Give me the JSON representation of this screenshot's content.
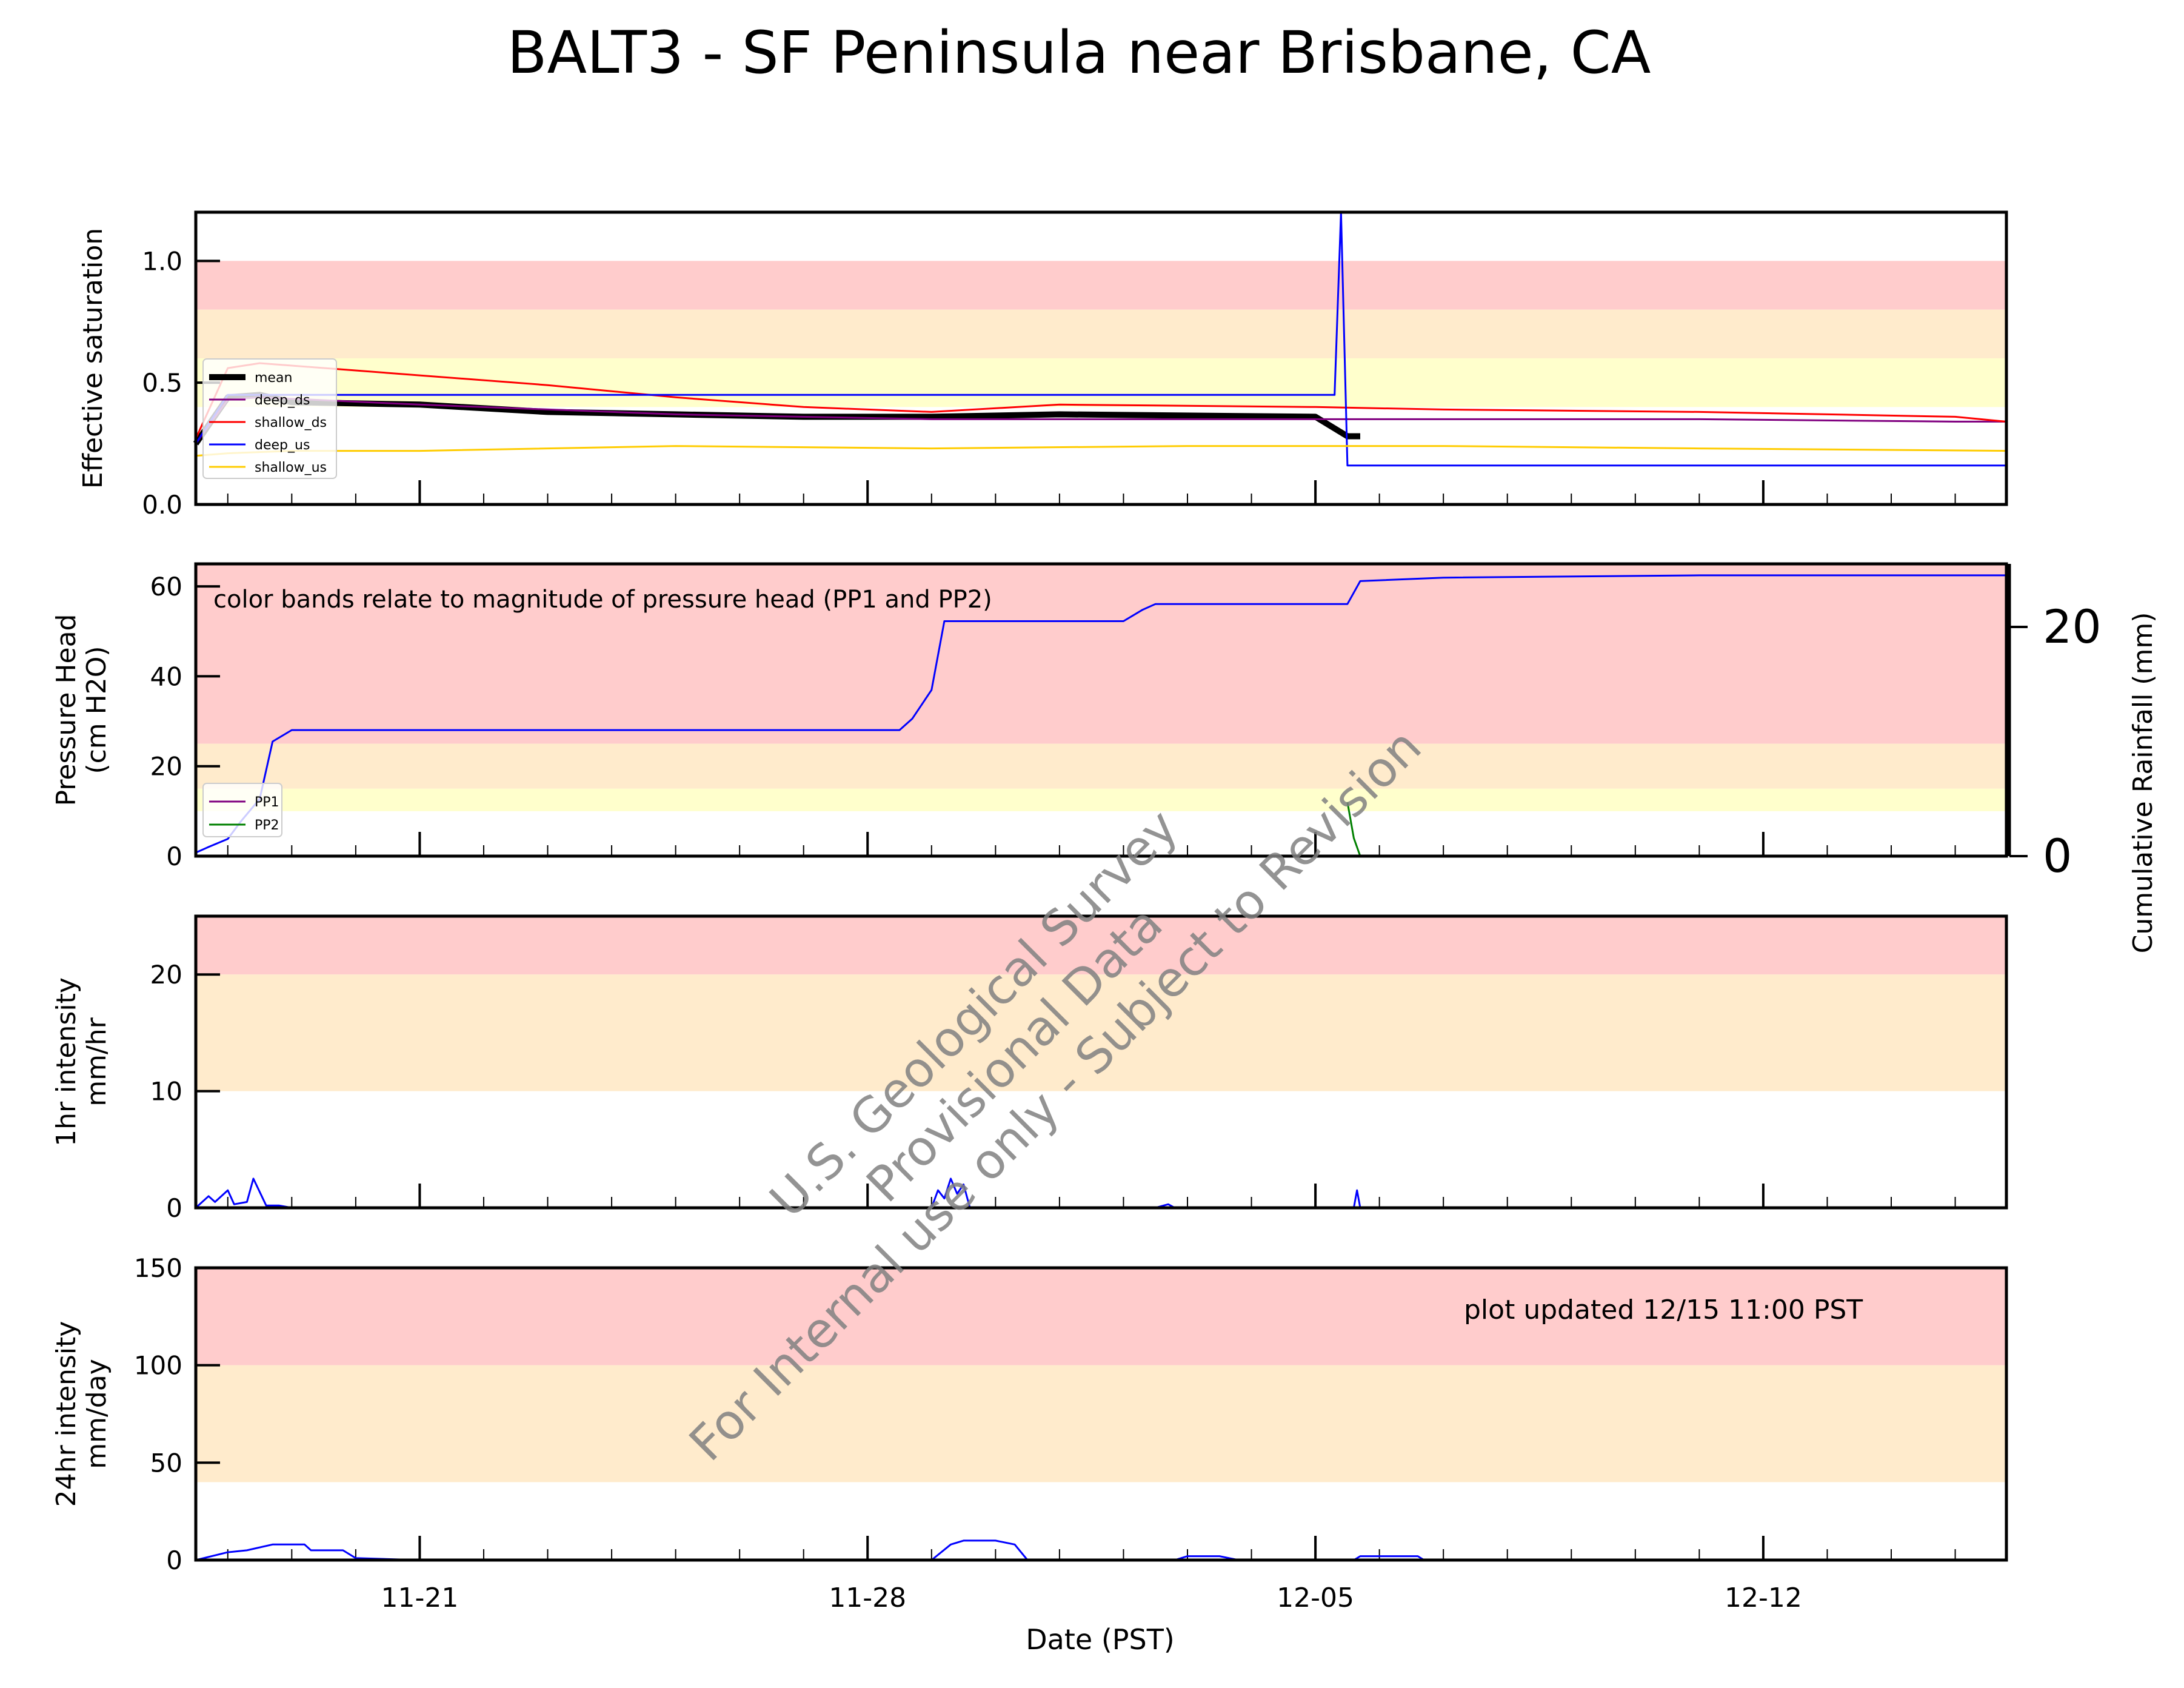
{
  "title": "BALT3 - SF Peninsula near Brisbane, CA",
  "xlabel": "Date (PST)",
  "x_ticks": [
    "11-21",
    "11-28",
    "12-05",
    "12-12"
  ],
  "note_pressure": "color bands relate to magnitude of pressure head (PP1 and PP2)",
  "note_updated": "plot updated 12/15 11:00  PST",
  "watermark": [
    "U.S. Geological Survey",
    "Provisional Data",
    "For Internal use only - Subject to Revision"
  ],
  "colors": {
    "red_band": "#ffcccc",
    "orange_band": "#ffebcc",
    "yellow_band": "#ffffcc",
    "mean": "#000000",
    "deep_ds": "#800080",
    "shallow_ds": "#ff0000",
    "deep_us": "#0000ff",
    "shallow_us": "#ffcc00",
    "pp1": "#800080",
    "pp2": "#008000",
    "rain": "#0000ff"
  },
  "chart_data": [
    {
      "type": "line",
      "ylabel": "Effective saturation",
      "ylim": [
        0,
        1.2
      ],
      "yticks": [
        "0.0",
        "0.5",
        "1.0"
      ],
      "x_range": [
        "11-17 12:00",
        "12-15 11:00"
      ],
      "bands": [
        {
          "from": 0.8,
          "to": 1.0,
          "color": "red"
        },
        {
          "from": 0.6,
          "to": 0.8,
          "color": "orange"
        },
        {
          "from": 0.4,
          "to": 0.6,
          "color": "yellow"
        }
      ],
      "legend": [
        "mean",
        "deep_ds",
        "shallow_ds",
        "deep_us",
        "shallow_us"
      ],
      "series": [
        {
          "name": "mean",
          "x": [
            -3.5,
            -3.0,
            -2.5,
            -2.0,
            0.0,
            2.0,
            4.0,
            6.0,
            8.0,
            10.0,
            14.0,
            14.5,
            14.7
          ],
          "y": [
            0.25,
            0.44,
            0.45,
            0.42,
            0.41,
            0.38,
            0.37,
            0.36,
            0.36,
            0.37,
            0.36,
            0.28,
            0.28
          ]
        },
        {
          "name": "deep_ds",
          "x": [
            -3.5,
            -3.0,
            -2.5,
            0.0,
            4.0,
            8.0,
            12.0,
            14.5,
            16.0,
            20.0,
            24.0,
            24.8
          ],
          "y": [
            0.25,
            0.43,
            0.44,
            0.41,
            0.37,
            0.35,
            0.35,
            0.35,
            0.35,
            0.35,
            0.34,
            0.34
          ]
        },
        {
          "name": "shallow_ds",
          "x": [
            -3.5,
            -3.0,
            -2.5,
            -2.0,
            0.0,
            2.0,
            4.0,
            6.0,
            8.0,
            10.0,
            14.0,
            16.0,
            20.0,
            24.0,
            24.8
          ],
          "y": [
            0.27,
            0.56,
            0.58,
            0.57,
            0.53,
            0.49,
            0.44,
            0.4,
            0.38,
            0.41,
            0.4,
            0.39,
            0.38,
            0.36,
            0.34
          ]
        },
        {
          "name": "deep_us",
          "x": [
            -3.5,
            -3.0,
            14.3,
            14.4,
            14.5,
            16.0,
            24.8
          ],
          "y": [
            0.25,
            0.45,
            0.45,
            1.2,
            0.16,
            0.16,
            0.16
          ]
        },
        {
          "name": "shallow_us",
          "x": [
            -3.5,
            -3.0,
            -2.0,
            0.0,
            4.0,
            8.0,
            12.0,
            14.3,
            14.5,
            16.0,
            20.0,
            24.8
          ],
          "y": [
            0.2,
            0.21,
            0.22,
            0.22,
            0.24,
            0.23,
            0.24,
            0.24,
            0.24,
            0.24,
            0.23,
            0.22
          ]
        }
      ]
    },
    {
      "type": "line",
      "ylabel": "Pressure Head\n(cm H2O)",
      "ylabel2": "Cumulative Rainfall (mm)",
      "ylim": [
        0,
        65
      ],
      "yticks": [
        "0",
        "20",
        "40",
        "60"
      ],
      "y2lim": [
        0,
        25.5
      ],
      "y2ticks": [
        "0",
        "20"
      ],
      "bands": [
        {
          "from": 25,
          "to": 65,
          "color": "red"
        },
        {
          "from": 15,
          "to": 25,
          "color": "orange"
        },
        {
          "from": 10,
          "to": 15,
          "color": "yellow"
        }
      ],
      "legend": [
        "PP1",
        "PP2"
      ],
      "series": [
        {
          "name": "PP2",
          "x": [
            14.5,
            14.6,
            14.7
          ],
          "y": [
            12,
            4,
            0
          ]
        },
        {
          "name": "Cumulative Rainfall",
          "axis": "right",
          "x": [
            -3.5,
            -3.3,
            -3.0,
            -2.8,
            -2.5,
            -2.3,
            -2.0,
            7.5,
            7.7,
            8.0,
            8.2,
            11.0,
            11.3,
            11.5,
            14.5,
            14.7,
            16.0,
            20.0,
            24.8
          ],
          "y": [
            0.3,
            0.8,
            1.5,
            3.0,
            5.0,
            10.0,
            11.0,
            11.0,
            12.0,
            14.5,
            20.5,
            20.5,
            21.5,
            22.0,
            22.0,
            24.0,
            24.3,
            24.5,
            24.5
          ]
        }
      ]
    },
    {
      "type": "area",
      "ylabel": "1hr intensity\nmm/hr",
      "ylim": [
        0,
        25
      ],
      "yticks": [
        "0",
        "10",
        "20"
      ],
      "bands": [
        {
          "from": 20,
          "to": 25,
          "color": "red"
        },
        {
          "from": 10,
          "to": 20,
          "color": "orange"
        }
      ],
      "series": [
        {
          "name": "1hr intensity",
          "x": [
            -3.5,
            -3.3,
            -3.2,
            -3.0,
            -2.9,
            -2.7,
            -2.6,
            -2.4,
            -2.2,
            -2.1,
            -2.0,
            8.0,
            8.1,
            8.2,
            8.3,
            8.4,
            8.5,
            8.6,
            11.5,
            11.7,
            11.8,
            14.6,
            14.65,
            14.7
          ],
          "y": [
            0,
            1.0,
            0.5,
            1.5,
            0.3,
            0.5,
            2.5,
            0.2,
            0.2,
            0.1,
            0,
            0,
            1.5,
            0.8,
            2.5,
            1.2,
            2.0,
            0,
            0,
            0.3,
            0,
            0,
            1.5,
            0
          ]
        }
      ]
    },
    {
      "type": "area",
      "ylabel": "24hr intensity\nmm/day",
      "ylim": [
        0,
        150
      ],
      "yticks": [
        "0",
        "50",
        "100",
        "150"
      ],
      "bands": [
        {
          "from": 100,
          "to": 150,
          "color": "red"
        },
        {
          "from": 40,
          "to": 100,
          "color": "orange"
        }
      ],
      "series": [
        {
          "name": "24hr intensity",
          "x": [
            -3.5,
            -3.0,
            -2.7,
            -2.3,
            -1.8,
            -1.7,
            -1.2,
            -1.0,
            0.0,
            8.0,
            8.3,
            8.5,
            9.0,
            9.3,
            9.5,
            11.8,
            12.0,
            12.5,
            12.8,
            14.6,
            14.7,
            15.6,
            15.7
          ],
          "y": [
            0,
            4,
            5,
            8,
            8,
            5,
            5,
            1,
            0,
            0,
            8,
            10,
            10,
            8,
            0,
            0,
            2,
            2,
            0,
            0,
            2,
            2,
            0
          ]
        }
      ]
    }
  ]
}
